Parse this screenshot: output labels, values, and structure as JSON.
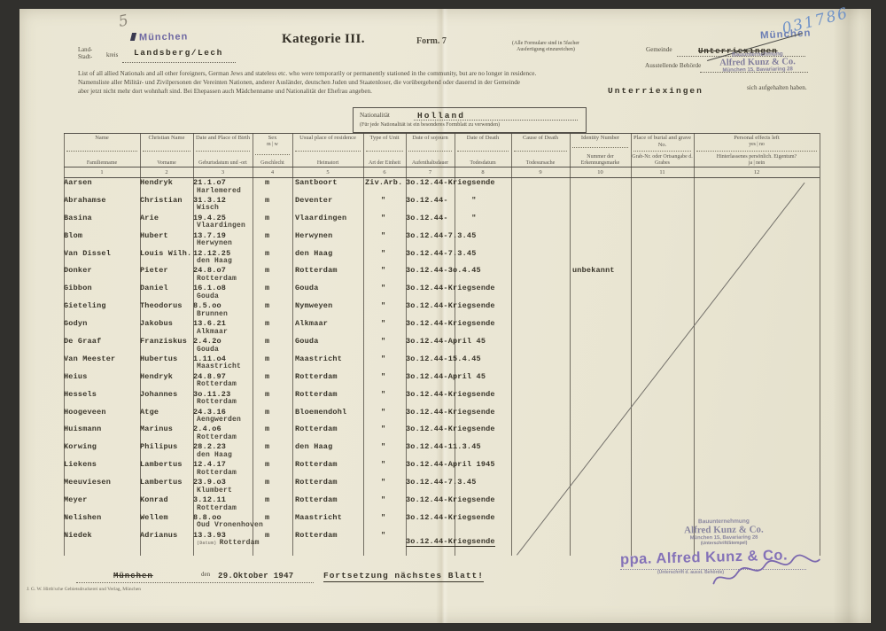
{
  "page": {
    "pencil_number": "5",
    "ink_number": "031786"
  },
  "header": {
    "kreis_label_line1": "Land-",
    "kreis_label_line2": "Stadt-",
    "kreis_label_suffix": "kreis",
    "kreis_city_stamp": "München",
    "kreis_value": "Landsberg/Lech",
    "title": "Kategorie III.",
    "form_no": "Form. 7",
    "copies_note_line1": "(Alle Formulare sind in 5facher",
    "copies_note_line2": "Ausfertigung einzureichen)",
    "gemeinde_label": "Gemeinde",
    "gemeinde_value": "Unterriexingen",
    "gemeinde_city_stamp": "München",
    "behoerde_label": "Ausstellende Behörde",
    "firm_stamp_line1": "Bauunternehmung",
    "firm_stamp_line2": "Alfred Kunz & Co.",
    "firm_stamp_line3": "München 15, Bavariaring 28",
    "intro_en": "List of all allied Nationals and all other foreigners, German Jews and stateless etc. who were temporarily or permanently stationed in the community, but are no longer in residence.",
    "intro_de_line1": "Namensliste aller Militär- und Zivilpersonen der Vereinten Nationen, anderer Ausländer, deutschen Juden und Staatenloser, die vorübergehend oder dauernd in der Gemeinde",
    "intro_de_gemeinde": "Unterriexingen",
    "intro_de_line2": "aber jetzt nicht mehr dort wohnhaft sind. Bei Ehepassen auch Mädchenname und Nationalität der Ehefrau angeben.",
    "intro_de_suffix": "sich aufgehalten haben."
  },
  "nationality_box": {
    "label": "Nationalität",
    "value": "Holland",
    "note": "(Für jede Nationalität ist ein besonderes Formblatt zu verwenden)"
  },
  "table": {
    "columns": [
      {
        "en": "Name",
        "de": "Familienname",
        "num": "1"
      },
      {
        "en": "Christian Name",
        "de": "Vorname",
        "num": "2"
      },
      {
        "en": "Date and Place of Birth",
        "de": "Geburtsdatum und -ort",
        "num": "3"
      },
      {
        "en": "Sex",
        "en2": "m | w",
        "de": "Geschlecht",
        "num": "4"
      },
      {
        "en": "Usual place of residence",
        "de": "Heimatort",
        "num": "5"
      },
      {
        "en": "Type of Unit",
        "de": "Art der Einheit",
        "num": "6"
      },
      {
        "en": "Date of sojourn",
        "de": "Aufenthaltsdauer",
        "num": "7"
      },
      {
        "en": "Date of Death",
        "de": "Todesdatum",
        "num": "8"
      },
      {
        "en": "Cause of Death",
        "de": "Todesursache",
        "num": "9"
      },
      {
        "en": "Identity Number",
        "de": "Nummer der Erkennungsmarke",
        "num": "10"
      },
      {
        "en": "Place of burial and grave No.",
        "de": "Grab-Nr. oder Ortsangabe d. Grabes",
        "num": "11"
      },
      {
        "en": "Personal effects left",
        "en2": "yes | no",
        "de": "Hinterlassenes persönlich. Eigentum?",
        "de2": "ja | nein",
        "num": "12"
      }
    ],
    "rows": [
      {
        "name": "Aarsen",
        "first": "Hendryk",
        "dob": "21.1.o7",
        "pob": "Harlemered",
        "sex": "m",
        "unit": "Ziv.Arb.",
        "residence": "Santboort",
        "sojourn": "3o.12.44-Kriegsende"
      },
      {
        "name": "Abrahamse",
        "first": "Christian",
        "dob": "31.3.12",
        "pob": "Wisch",
        "sex": "m",
        "unit": "\"",
        "residence": "Deventer",
        "sojourn": "3o.12.44-     \""
      },
      {
        "name": "Basina",
        "first": "Arie",
        "dob": "19.4.25",
        "pob": "Vlaardingen",
        "sex": "m",
        "unit": "\"",
        "residence": "Vlaardingen",
        "sojourn": "3o.12.44-     \""
      },
      {
        "name": "Blom",
        "first": "Hubert",
        "dob": "13.7.19",
        "pob": "Herwynen",
        "sex": "m",
        "unit": "\"",
        "residence": "Herwynen",
        "sojourn": "3o.12.44-7.3.45"
      },
      {
        "name": "Van Dissel",
        "first": "Louis Wilh.",
        "dob": "12.12.25",
        "pob": "den Haag",
        "sex": "m",
        "unit": "\"",
        "residence": "den Haag",
        "sojourn": "3o.12.44-7.3.45"
      },
      {
        "name": "Donker",
        "first": "Pieter",
        "dob": "24.8.o7",
        "pob": "Rotterdam",
        "sex": "m",
        "unit": "\"",
        "residence": "Rotterdam",
        "sojourn": "3o.12.44-3o.4.45",
        "identity": "unbekannt"
      },
      {
        "name": "Gibbon",
        "first": "Daniel",
        "dob": "16.1.o8",
        "pob": "Gouda",
        "sex": "m",
        "unit": "\"",
        "residence": "Gouda",
        "sojourn": "3o.12.44-Kriegsende"
      },
      {
        "name": "Gieteling",
        "first": "Theodorus",
        "dob": "8.5.oo",
        "pob": "Brunnen",
        "sex": "m",
        "unit": "\"",
        "residence": "Nymweyen",
        "sojourn": "3o.12.44-Kriegsende"
      },
      {
        "name": "Godyn",
        "first": "Jakobus",
        "dob": "13.6.21",
        "pob": "Alkmaar",
        "sex": "m",
        "unit": "\"",
        "residence": "Alkmaar",
        "sojourn": "3o.12.44-Kriegsende"
      },
      {
        "name": "De Graaf",
        "first": "Franziskus",
        "dob": "2.4.2o",
        "pob": "Gouda",
        "sex": "m",
        "unit": "\"",
        "residence": "Gouda",
        "sojourn": "3o.12.44-April 45"
      },
      {
        "name": "Van Meester",
        "first": "Hubertus",
        "dob": "1.11.o4",
        "pob": "Maastricht",
        "sex": "m",
        "unit": "\"",
        "residence": "Maastricht",
        "sojourn": "3o.12.44-15.4.45"
      },
      {
        "name": "Heius",
        "first": "Hendryk",
        "dob": "24.8.97",
        "pob": "Rotterdam",
        "sex": "m",
        "unit": "\"",
        "residence": "Rotterdam",
        "sojourn": "3o.12.44-April 45"
      },
      {
        "name": "Hessels",
        "first": "Johannes",
        "dob": "3o.11.23",
        "pob": "Rotterdam",
        "sex": "m",
        "unit": "\"",
        "residence": "Rotterdam",
        "sojourn": "3o.12.44-Kriegsende"
      },
      {
        "name": "Hoogeveen",
        "first": "Atge",
        "dob": "24.3.16",
        "pob": "Aengwerden",
        "sex": "m",
        "unit": "\"",
        "residence": "Bloemendohl",
        "sojourn": "3o.12.44-Kriegsende"
      },
      {
        "name": "Huismann",
        "first": "Marinus",
        "dob": "2.4.o6",
        "pob": "Rotterdam",
        "sex": "m",
        "unit": "\"",
        "residence": "Rotterdam",
        "sojourn": "3o.12.44-Kriegsende"
      },
      {
        "name": "Korwing",
        "first": "Philipus",
        "dob": "28.2.23",
        "pob": "den Haag",
        "sex": "m",
        "unit": "\"",
        "residence": "den Haag",
        "sojourn": "3o.12.44-11.3.45"
      },
      {
        "name": "Liekens",
        "first": "Lambertus",
        "dob": "12.4.17",
        "pob": "Rotterdam",
        "sex": "m",
        "unit": "\"",
        "residence": "Rotterdam",
        "sojourn": "3o.12.44-April 1945"
      },
      {
        "name": "Meeuviesen",
        "first": "Lambertus",
        "dob": "23.9.o3",
        "pob": "Klumbert",
        "sex": "m",
        "unit": "\"",
        "residence": "Rotterdam",
        "sojourn": "3o.12.44-7.3.45"
      },
      {
        "name": "Meyer",
        "first": "Konrad",
        "dob": "3.12.11",
        "pob": "Rotterdam",
        "sex": "m",
        "unit": "\"",
        "residence": "Rotterdam",
        "sojourn": "3o.12.44-Kriegsende"
      },
      {
        "name": "Nelishen",
        "first": "Wellem",
        "dob": "8.8.oo",
        "pob": "Oud Vronenhoven",
        "sex": "m",
        "unit": "\"",
        "residence": "Maastricht",
        "sojourn": "3o.12.44-Kriegsende"
      },
      {
        "name": "Niedek",
        "first": "Adrianus",
        "dob": "13.3.93",
        "pob": "Rotterdam",
        "pob_prefix": "(Datum)",
        "sex": "m",
        "unit": "\"",
        "residence": "Rotterdam",
        "sojourn": "3o.12.44-Kriegsende",
        "underline": true
      }
    ]
  },
  "footer": {
    "place": "München",
    "den_label": "den",
    "date": "29.Oktober 1947",
    "continuation": "Fortsetzung nächstes Blatt!",
    "printer": "J. G. W. Hirth'sche Gebietsdruckerei und Verlag, München",
    "firm_stamp_line1": "Bauunternehmung",
    "firm_stamp_line2": "Alfred Kunz & Co.",
    "firm_stamp_line3": "München 15, Bavariaring 28",
    "firm_stamp_caption": "(Unterschrift/Stempel)",
    "signature_stamp": "ppa. Alfred Kunz & Co.",
    "signature_caption": "(Unterschrift d. ausst. Behörde)"
  }
}
